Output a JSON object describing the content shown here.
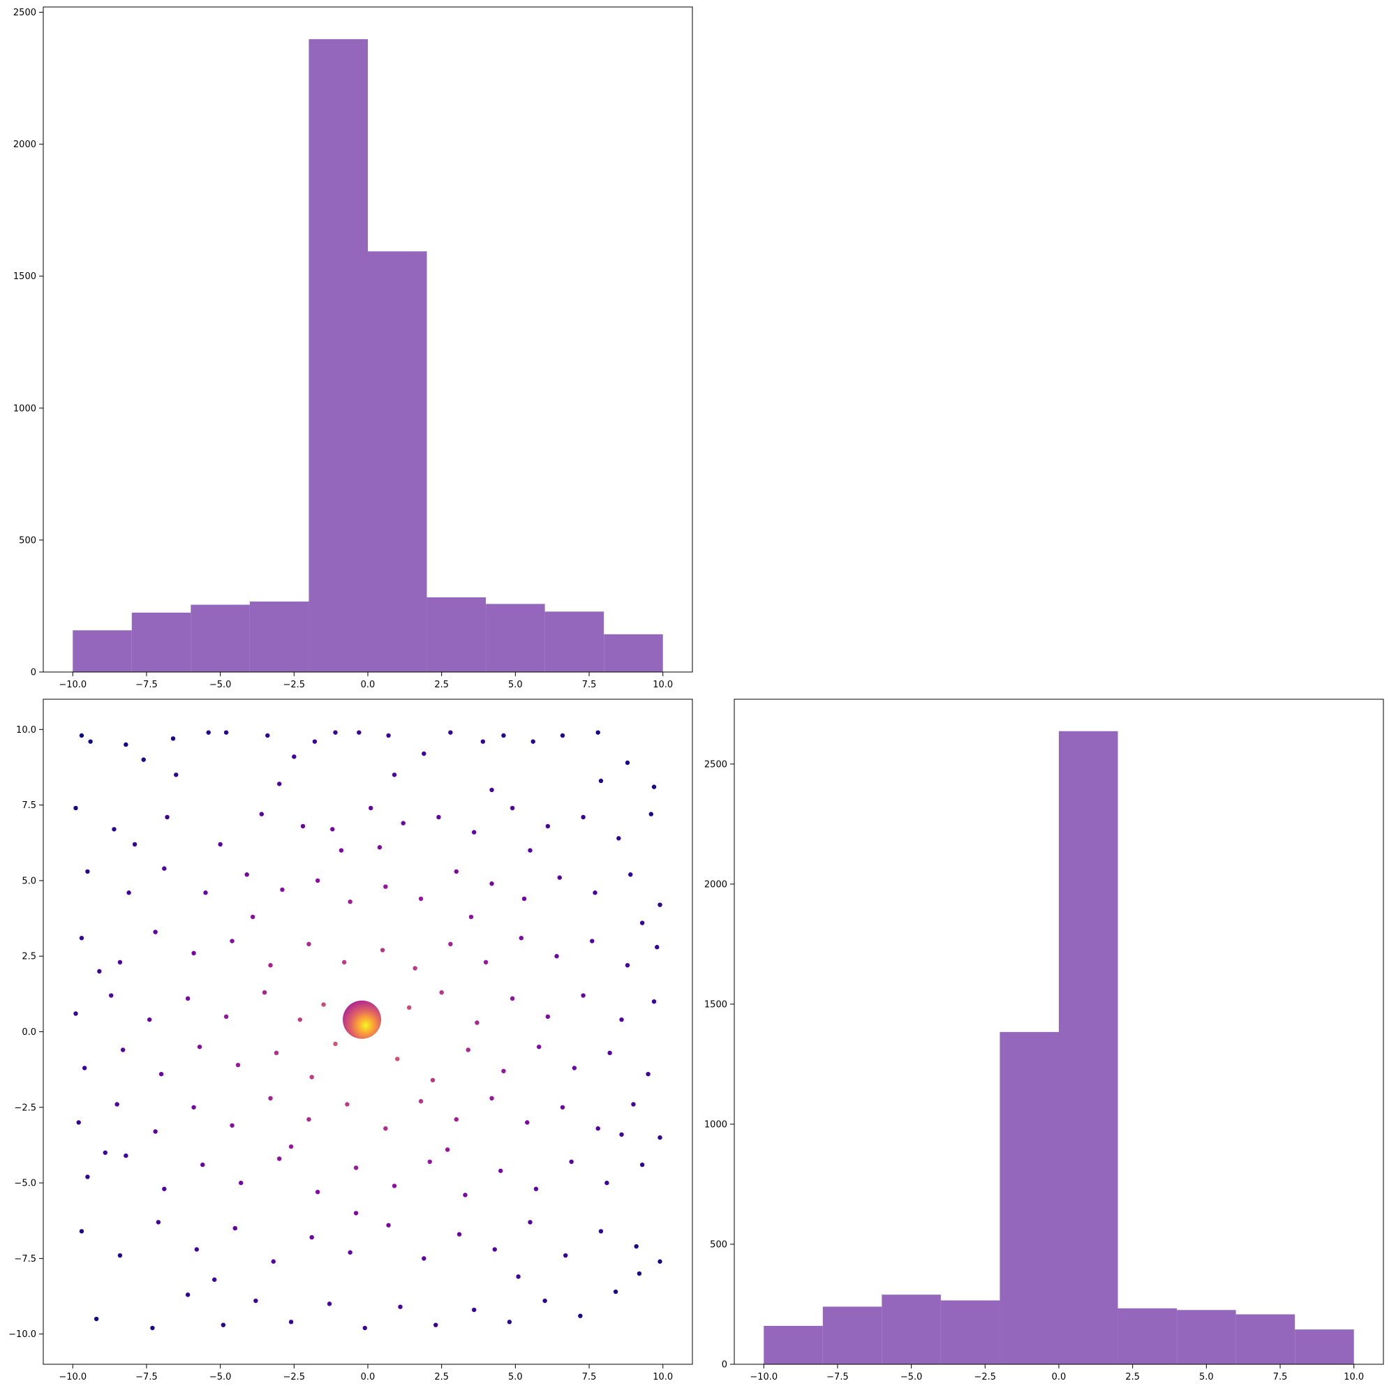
{
  "chart_data": [
    {
      "id": "top_hist",
      "type": "bar",
      "title": "",
      "xlabel": "",
      "ylabel": "",
      "bin_edges": [
        -10,
        -8,
        -6,
        -4,
        -2,
        0,
        2,
        4,
        6,
        8,
        10
      ],
      "values": [
        158,
        225,
        255,
        267,
        2398,
        1594,
        283,
        258,
        229,
        143
      ],
      "xlim": [
        -11,
        11
      ],
      "ylim": [
        0,
        2520
      ],
      "xticks": [
        -10.0,
        -7.5,
        -5.0,
        -2.5,
        0.0,
        2.5,
        5.0,
        7.5,
        10.0
      ],
      "xtick_labels": [
        "−10.0",
        "−7.5",
        "−5.0",
        "−2.5",
        "0.0",
        "2.5",
        "5.0",
        "7.5",
        "10.0"
      ],
      "yticks": [
        0,
        500,
        1000,
        1500,
        2000,
        2500
      ],
      "ytick_labels": [
        "0",
        "500",
        "1000",
        "1500",
        "2000",
        "2500"
      ],
      "color": "#9467bd",
      "grid": false
    },
    {
      "id": "scatter",
      "type": "scatter",
      "title": "",
      "xlabel": "",
      "ylabel": "",
      "xlim": [
        -11,
        11
      ],
      "ylim": [
        -11,
        11
      ],
      "xticks": [
        -10.0,
        -7.5,
        -5.0,
        -2.5,
        0.0,
        2.5,
        5.0,
        7.5,
        10.0
      ],
      "xtick_labels": [
        "−10.0",
        "−7.5",
        "−5.0",
        "−2.5",
        "0.0",
        "2.5",
        "5.0",
        "7.5",
        "10.0"
      ],
      "yticks": [
        10.0,
        7.5,
        5.0,
        2.5,
        0.0,
        -2.5,
        -5.0,
        -7.5,
        -10.0
      ],
      "ytick_labels": [
        "10.0",
        "7.5",
        "5.0",
        "2.5",
        "0.0",
        "−2.5",
        "−5.0",
        "−7.5",
        "−10.0"
      ],
      "colormap": "plasma",
      "color_by": "distance from origin (near = yellow, far = dark purple)",
      "colormap_stops": [
        "#0d0887",
        "#5302a3",
        "#8b0aa5",
        "#b83289",
        "#db5c68",
        "#f48849",
        "#febc2a",
        "#f0f921"
      ],
      "points": [
        [
          -9.7,
          9.8
        ],
        [
          -9.4,
          9.6
        ],
        [
          -8.2,
          9.5
        ],
        [
          -7.6,
          9.0
        ],
        [
          -6.5,
          8.5
        ],
        [
          -5.4,
          9.9
        ],
        [
          -4.8,
          9.9
        ],
        [
          -3.4,
          9.8
        ],
        [
          -2.5,
          9.1
        ],
        [
          -1.8,
          9.6
        ],
        [
          -1.1,
          9.9
        ],
        [
          -0.3,
          9.9
        ],
        [
          0.7,
          9.8
        ],
        [
          1.9,
          9.2
        ],
        [
          2.8,
          9.9
        ],
        [
          3.9,
          9.6
        ],
        [
          4.6,
          9.8
        ],
        [
          5.6,
          9.6
        ],
        [
          6.6,
          9.8
        ],
        [
          7.8,
          9.9
        ],
        [
          8.8,
          8.9
        ],
        [
          9.7,
          8.1
        ],
        [
          -9.9,
          7.4
        ],
        [
          -8.6,
          6.7
        ],
        [
          -6.8,
          7.1
        ],
        [
          -5.0,
          6.2
        ],
        [
          -3.6,
          7.2
        ],
        [
          -2.2,
          6.8
        ],
        [
          -1.2,
          6.7
        ],
        [
          0.1,
          7.4
        ],
        [
          1.2,
          6.9
        ],
        [
          2.4,
          7.1
        ],
        [
          3.6,
          6.6
        ],
        [
          4.9,
          7.4
        ],
        [
          6.1,
          6.8
        ],
        [
          7.3,
          7.1
        ],
        [
          8.5,
          6.4
        ],
        [
          9.6,
          7.2
        ],
        [
          -9.5,
          5.3
        ],
        [
          -8.1,
          4.6
        ],
        [
          -6.9,
          5.4
        ],
        [
          -5.5,
          4.6
        ],
        [
          -4.1,
          5.2
        ],
        [
          -2.9,
          4.7
        ],
        [
          -1.7,
          5.0
        ],
        [
          -0.6,
          4.3
        ],
        [
          0.6,
          4.8
        ],
        [
          1.8,
          4.4
        ],
        [
          3.0,
          5.3
        ],
        [
          4.2,
          4.9
        ],
        [
          5.3,
          4.4
        ],
        [
          6.5,
          5.1
        ],
        [
          7.7,
          4.6
        ],
        [
          8.9,
          5.2
        ],
        [
          9.9,
          4.2
        ],
        [
          -9.7,
          3.1
        ],
        [
          -8.4,
          2.3
        ],
        [
          -7.2,
          3.3
        ],
        [
          -5.9,
          2.6
        ],
        [
          -4.6,
          3.0
        ],
        [
          -3.3,
          2.2
        ],
        [
          -2.0,
          2.9
        ],
        [
          -0.8,
          2.3
        ],
        [
          0.5,
          2.7
        ],
        [
          1.6,
          2.1
        ],
        [
          2.8,
          2.9
        ],
        [
          4.0,
          2.3
        ],
        [
          5.2,
          3.1
        ],
        [
          6.4,
          2.5
        ],
        [
          7.6,
          3.0
        ],
        [
          8.8,
          2.2
        ],
        [
          9.8,
          2.8
        ],
        [
          -9.9,
          0.6
        ],
        [
          -8.7,
          1.2
        ],
        [
          -7.4,
          0.4
        ],
        [
          -6.1,
          1.1
        ],
        [
          -4.8,
          0.5
        ],
        [
          -3.5,
          1.3
        ],
        [
          -2.3,
          0.4
        ],
        [
          -1.5,
          0.9
        ],
        [
          1.4,
          0.8
        ],
        [
          2.5,
          1.3
        ],
        [
          3.7,
          0.3
        ],
        [
          4.9,
          1.1
        ],
        [
          6.1,
          0.5
        ],
        [
          7.3,
          1.2
        ],
        [
          8.6,
          0.4
        ],
        [
          9.7,
          1.0
        ],
        [
          -9.6,
          -1.2
        ],
        [
          -8.3,
          -0.6
        ],
        [
          -7.0,
          -1.4
        ],
        [
          -5.7,
          -0.5
        ],
        [
          -4.4,
          -1.1
        ],
        [
          -3.1,
          -0.7
        ],
        [
          -1.9,
          -1.5
        ],
        [
          -1.1,
          -0.4
        ],
        [
          1.0,
          -0.9
        ],
        [
          2.2,
          -1.6
        ],
        [
          3.4,
          -0.6
        ],
        [
          4.6,
          -1.3
        ],
        [
          5.8,
          -0.5
        ],
        [
          7.0,
          -1.2
        ],
        [
          8.2,
          -0.7
        ],
        [
          9.5,
          -1.4
        ],
        [
          -9.8,
          -3.0
        ],
        [
          -8.5,
          -2.4
        ],
        [
          -7.2,
          -3.3
        ],
        [
          -5.9,
          -2.5
        ],
        [
          -4.6,
          -3.1
        ],
        [
          -3.3,
          -2.2
        ],
        [
          -2.0,
          -2.9
        ],
        [
          -0.7,
          -2.4
        ],
        [
          0.6,
          -3.2
        ],
        [
          1.8,
          -2.3
        ],
        [
          3.0,
          -2.9
        ],
        [
          4.2,
          -2.2
        ],
        [
          5.4,
          -3.0
        ],
        [
          6.6,
          -2.5
        ],
        [
          7.8,
          -3.2
        ],
        [
          9.0,
          -2.4
        ],
        [
          9.9,
          -3.5
        ],
        [
          -9.5,
          -4.8
        ],
        [
          -8.2,
          -4.1
        ],
        [
          -6.9,
          -5.2
        ],
        [
          -5.6,
          -4.4
        ],
        [
          -4.3,
          -5.0
        ],
        [
          -3.0,
          -4.2
        ],
        [
          -1.7,
          -5.3
        ],
        [
          -0.4,
          -4.5
        ],
        [
          0.9,
          -5.1
        ],
        [
          2.1,
          -4.3
        ],
        [
          3.3,
          -5.4
        ],
        [
          4.5,
          -4.6
        ],
        [
          5.7,
          -5.2
        ],
        [
          6.9,
          -4.3
        ],
        [
          8.1,
          -5.0
        ],
        [
          9.3,
          -4.4
        ],
        [
          -9.7,
          -6.6
        ],
        [
          -8.4,
          -7.4
        ],
        [
          -7.1,
          -6.3
        ],
        [
          -5.8,
          -7.2
        ],
        [
          -4.5,
          -6.5
        ],
        [
          -3.2,
          -7.6
        ],
        [
          -1.9,
          -6.8
        ],
        [
          -0.6,
          -7.3
        ],
        [
          0.7,
          -6.4
        ],
        [
          1.9,
          -7.5
        ],
        [
          3.1,
          -6.7
        ],
        [
          4.3,
          -7.2
        ],
        [
          5.5,
          -6.3
        ],
        [
          6.7,
          -7.4
        ],
        [
          7.9,
          -6.6
        ],
        [
          9.1,
          -7.1
        ],
        [
          9.9,
          -7.6
        ],
        [
          -9.2,
          -9.5
        ],
        [
          -7.3,
          -9.8
        ],
        [
          -6.1,
          -8.7
        ],
        [
          -4.9,
          -9.7
        ],
        [
          -3.8,
          -8.9
        ],
        [
          -2.6,
          -9.6
        ],
        [
          -1.3,
          -9.0
        ],
        [
          -0.1,
          -9.8
        ],
        [
          1.1,
          -9.1
        ],
        [
          2.3,
          -9.7
        ],
        [
          3.6,
          -9.2
        ],
        [
          4.8,
          -9.6
        ],
        [
          6.0,
          -8.9
        ],
        [
          7.2,
          -9.4
        ],
        [
          8.4,
          -8.6
        ],
        [
          9.2,
          -8.0
        ],
        [
          -6.6,
          9.7
        ],
        [
          -3.0,
          8.2
        ],
        [
          0.9,
          8.5
        ],
        [
          4.2,
          8.0
        ],
        [
          7.9,
          8.3
        ],
        [
          -7.9,
          6.2
        ],
        [
          -0.9,
          6.0
        ],
        [
          5.5,
          6.0
        ],
        [
          -3.9,
          3.8
        ],
        [
          3.5,
          3.8
        ],
        [
          -2.6,
          -3.8
        ],
        [
          2.7,
          -3.9
        ],
        [
          -5.2,
          -8.2
        ],
        [
          5.1,
          -8.1
        ],
        [
          -8.9,
          -4.0
        ],
        [
          8.6,
          -3.4
        ],
        [
          -9.1,
          2.0
        ],
        [
          9.3,
          3.6
        ],
        [
          -0.4,
          -6.0
        ],
        [
          0.4,
          6.1
        ]
      ],
      "bubble": {
        "x": -0.2,
        "y": 0.4,
        "r": 0.65
      },
      "grid": false
    },
    {
      "id": "right_hist",
      "type": "bar",
      "title": "",
      "xlabel": "",
      "ylabel": "",
      "bin_edges": [
        -10,
        -8,
        -6,
        -4,
        -2,
        0,
        2,
        4,
        6,
        8,
        10
      ],
      "values": [
        160,
        240,
        290,
        266,
        1384,
        2637,
        233,
        226,
        208,
        145
      ],
      "xlim": [
        -11,
        11
      ],
      "ylim": [
        0,
        2770
      ],
      "xticks": [
        -10.0,
        -7.5,
        -5.0,
        -2.5,
        0.0,
        2.5,
        5.0,
        7.5,
        10.0
      ],
      "xtick_labels": [
        "−10.0",
        "−7.5",
        "−5.0",
        "−2.5",
        "0.0",
        "2.5",
        "5.0",
        "7.5",
        "10.0"
      ],
      "yticks": [
        0,
        500,
        1000,
        1500,
        2000,
        2500
      ],
      "ytick_labels": [
        "0",
        "500",
        "1000",
        "1500",
        "2000",
        "2500"
      ],
      "color": "#9467bd",
      "grid": false
    }
  ]
}
